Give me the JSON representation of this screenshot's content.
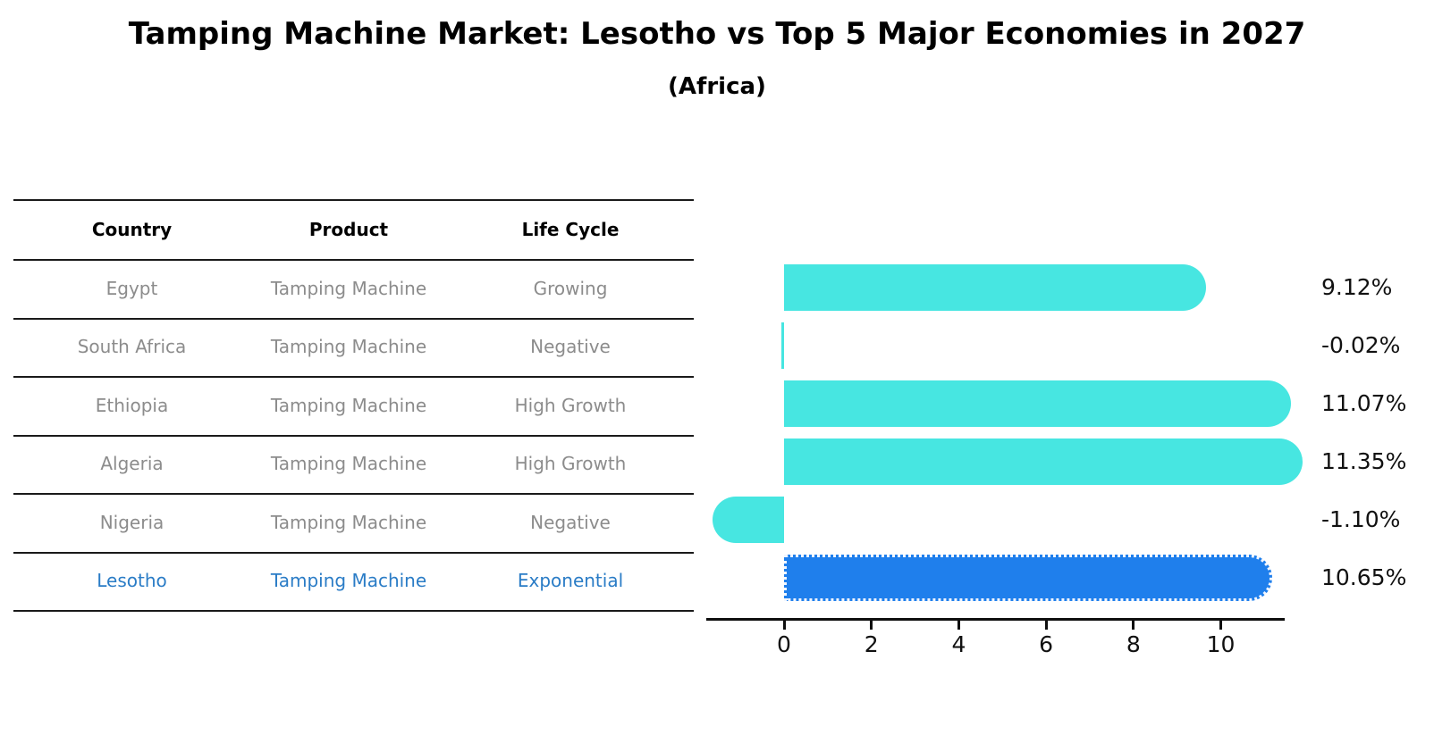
{
  "title": "Tamping Machine Market: Lesotho vs Top 5 Major Economies in 2027",
  "subtitle": "(Africa)",
  "table": {
    "headers": [
      "Country",
      "Product",
      "Life Cycle"
    ],
    "rows": [
      {
        "country": "Egypt",
        "product": "Tamping Machine",
        "life_cycle": "Growing",
        "highlight": false
      },
      {
        "country": "South Africa",
        "product": "Tamping Machine",
        "life_cycle": "Negative",
        "highlight": false
      },
      {
        "country": "Ethiopia",
        "product": "Tamping Machine",
        "life_cycle": "High Growth",
        "highlight": false
      },
      {
        "country": "Algeria",
        "product": "Tamping Machine",
        "life_cycle": "High Growth",
        "highlight": false
      },
      {
        "country": "Nigeria",
        "product": "Tamping Machine",
        "life_cycle": "Negative",
        "highlight": false
      },
      {
        "country": "Lesotho",
        "product": "Tamping Machine",
        "life_cycle": "Exponential",
        "highlight": true
      }
    ]
  },
  "chart_data": {
    "type": "bar",
    "orientation": "horizontal",
    "title": "Tamping Machine Market: Lesotho vs Top 5 Major Economies in 2027 (Africa)",
    "categories": [
      "Egypt",
      "South Africa",
      "Ethiopia",
      "Algeria",
      "Nigeria",
      "Lesotho"
    ],
    "values": [
      9.12,
      -0.02,
      11.07,
      11.35,
      -1.1,
      10.65
    ],
    "value_labels": [
      "9.12%",
      "-0.02%",
      "11.07%",
      "11.35%",
      "-1.10%",
      "10.65%"
    ],
    "x_ticks": [
      "0",
      "2",
      "4",
      "6",
      "8",
      "10"
    ],
    "x_tick_values": [
      0,
      2,
      4,
      6,
      8,
      10
    ],
    "xlim": [
      -1.8,
      11.45
    ],
    "grid": false,
    "legend": "none",
    "bar_color": "#47e6e1",
    "highlight_color": "#1f7fec",
    "highlight_index": 5,
    "highlight_style": "dotted-border"
  }
}
